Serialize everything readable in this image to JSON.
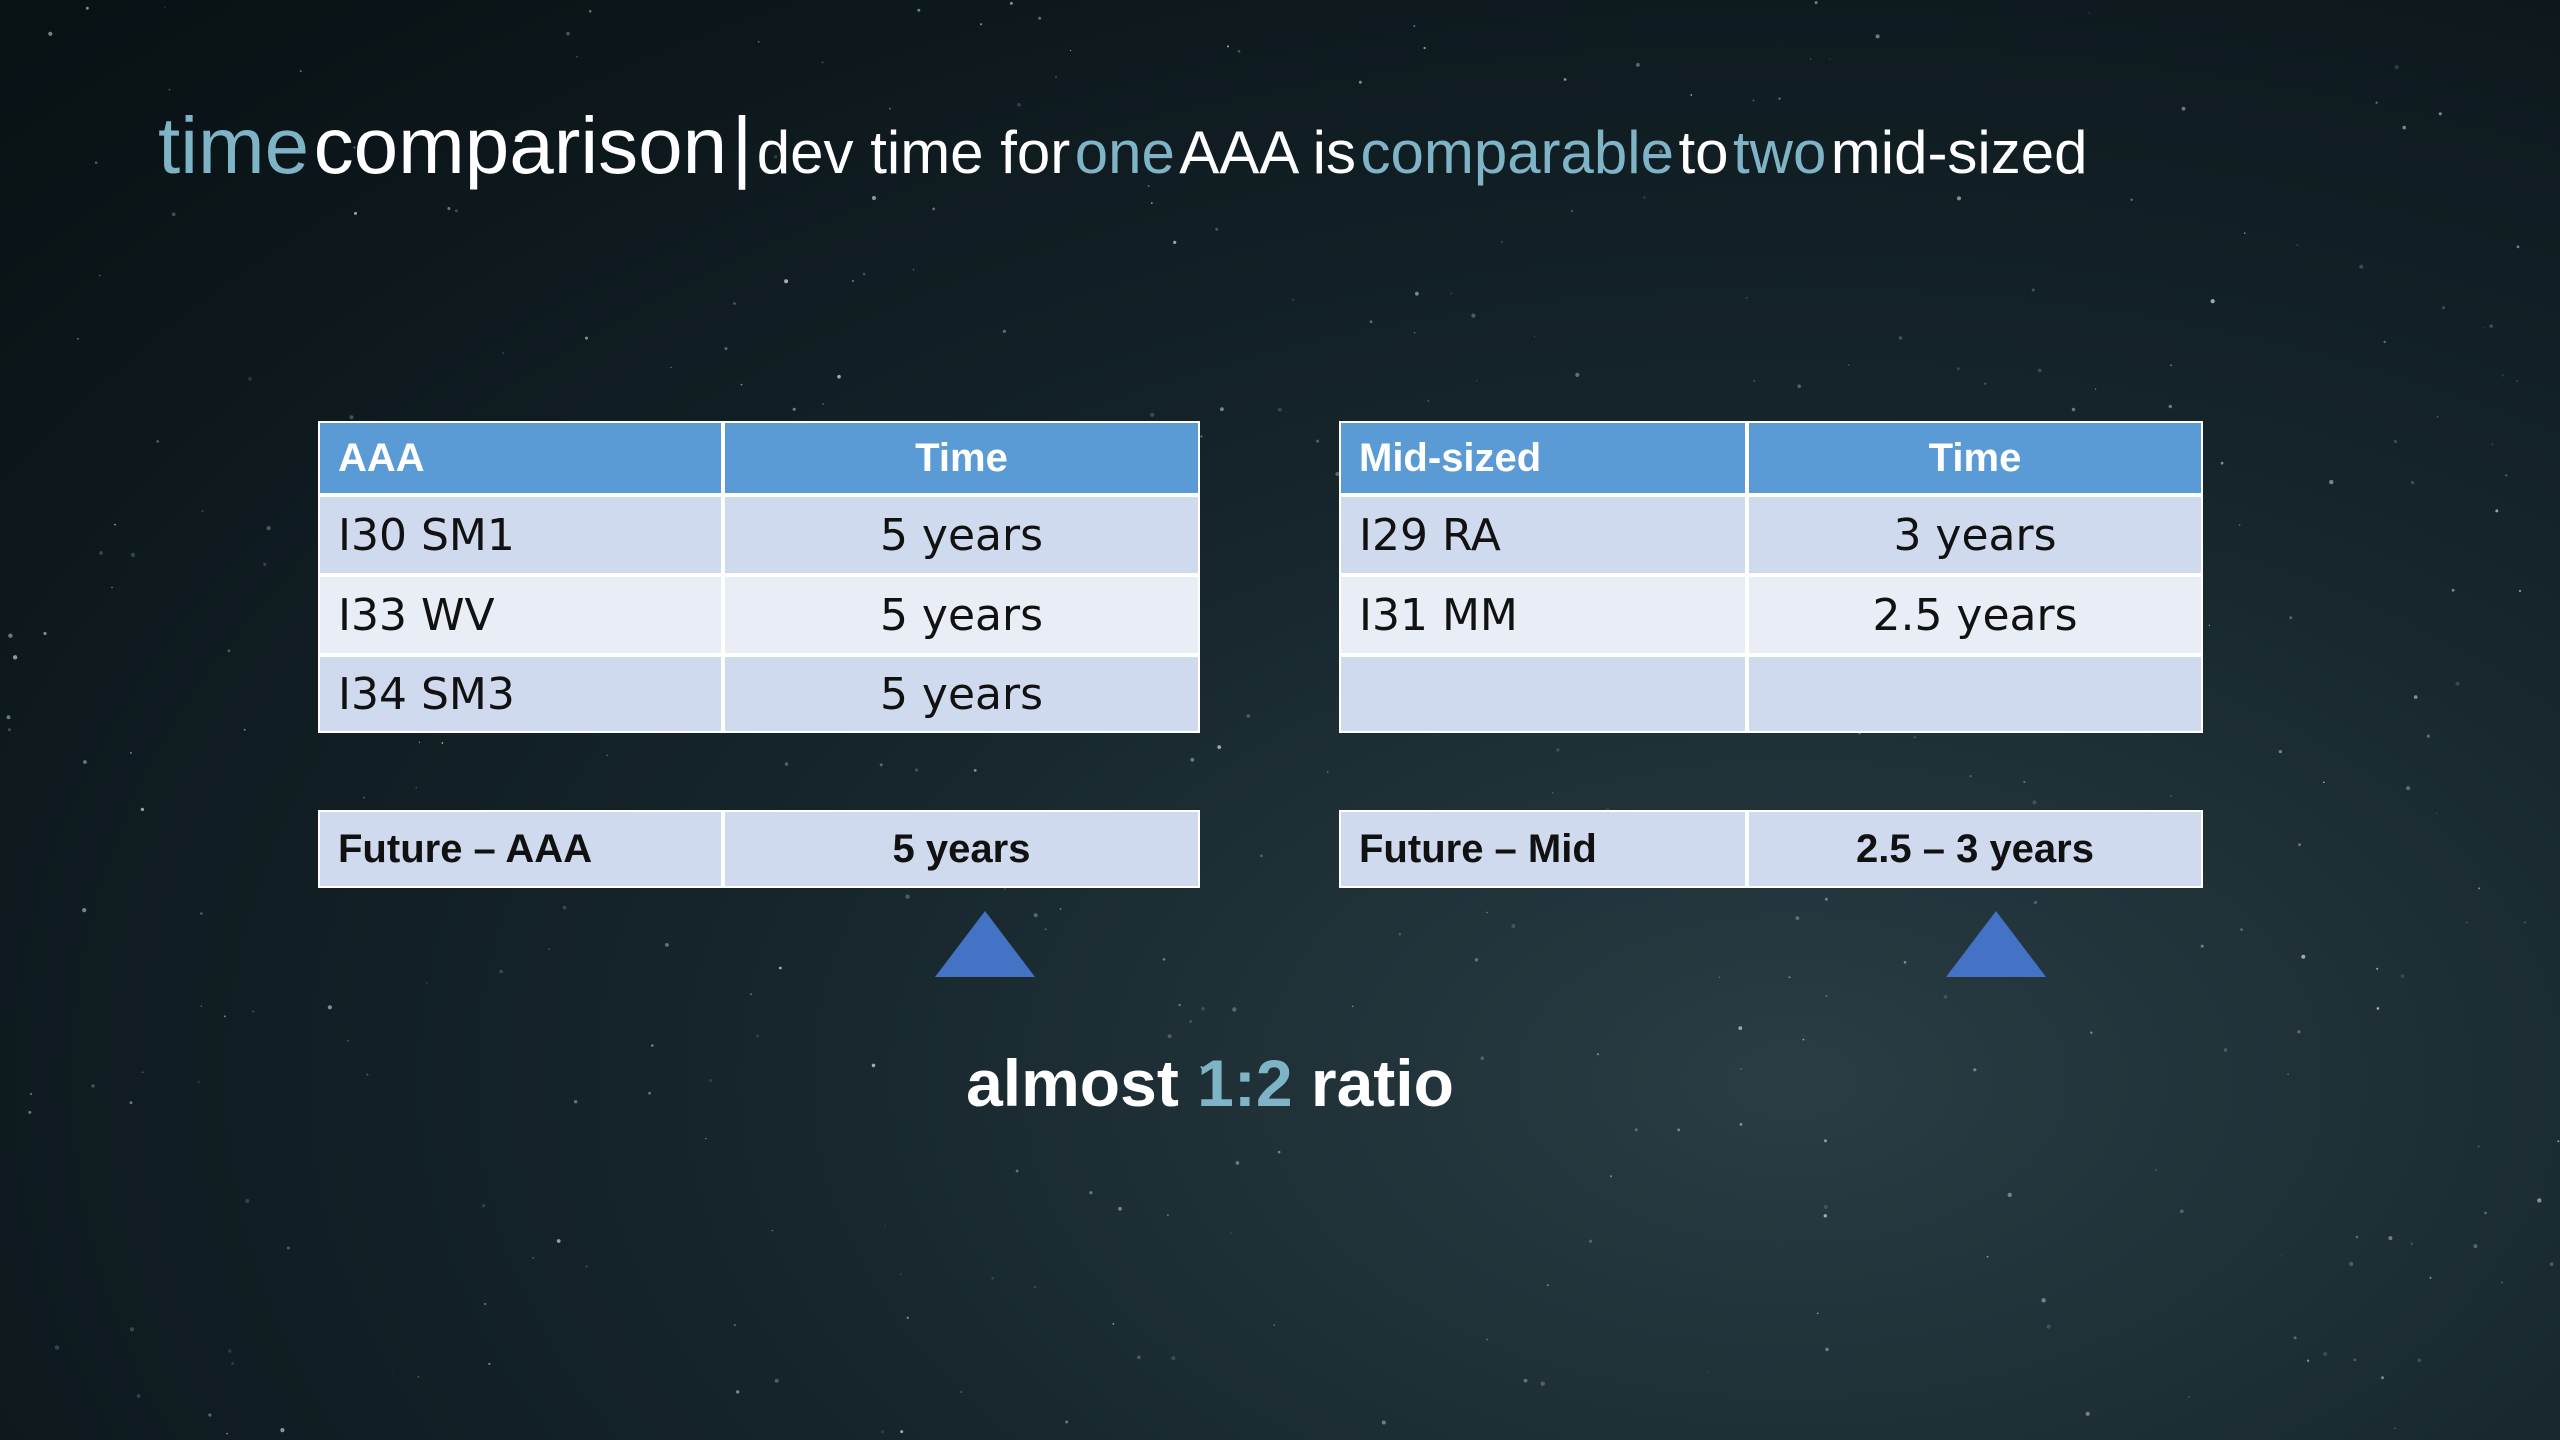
{
  "title": {
    "segments": [
      {
        "text": "time",
        "accent": true,
        "large": true
      },
      {
        "text": "comparison",
        "accent": false,
        "large": true
      },
      {
        "text": "|",
        "accent": false,
        "large": true
      },
      {
        "text": "dev time for",
        "accent": false,
        "large": false
      },
      {
        "text": "one",
        "accent": true,
        "large": false
      },
      {
        "text": "AAA is",
        "accent": false,
        "large": false
      },
      {
        "text": "comparable",
        "accent": true,
        "large": false
      },
      {
        "text": "to",
        "accent": false,
        "large": false
      },
      {
        "text": "two",
        "accent": true,
        "large": false
      },
      {
        "text": "mid-sized",
        "accent": false,
        "large": false
      }
    ]
  },
  "tables": [
    {
      "header": [
        "AAA",
        "Time"
      ],
      "rows": [
        [
          "I30 SM1",
          "5 years"
        ],
        [
          "I33 WV",
          "5 years"
        ],
        [
          "I34 SM3",
          "5 years"
        ]
      ],
      "future": [
        "Future – AAA",
        "5 years"
      ]
    },
    {
      "header": [
        "Mid-sized",
        "Time"
      ],
      "rows": [
        [
          "I29 RA",
          "3 years"
        ],
        [
          "I31 MM",
          "2.5 years"
        ]
      ],
      "future": [
        "Future – Mid",
        "2.5 – 3 years"
      ]
    }
  ],
  "footer": {
    "segments": [
      {
        "text": "almost",
        "accent": false
      },
      {
        "text": "1:2",
        "accent": true
      },
      {
        "text": "ratio",
        "accent": false
      }
    ]
  }
}
